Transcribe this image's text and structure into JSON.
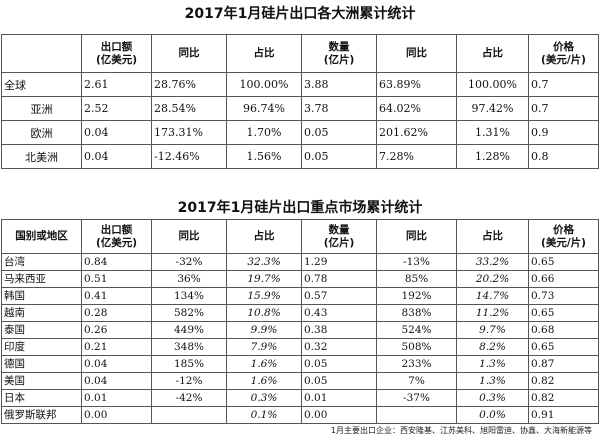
{
  "continent_table": {
    "title": "2017年1月硅片出口各大洲累计统计",
    "headers": [
      {
        "line1": "",
        "line2": ""
      },
      {
        "line1": "出口额",
        "line2": "(亿美元)"
      },
      {
        "line1": "同比",
        "line2": ""
      },
      {
        "line1": "占比",
        "line2": ""
      },
      {
        "line1": "数量",
        "line2": "(亿片)"
      },
      {
        "line1": "同比",
        "line2": ""
      },
      {
        "line1": "占比",
        "line2": ""
      },
      {
        "line1": "价格",
        "line2": "(美元/片)"
      }
    ],
    "rows": [
      [
        "全球",
        "2.61",
        "28.76%",
        "100.00%",
        "3.88",
        "63.89%",
        "100.00%",
        "0.7"
      ],
      [
        "亚洲",
        "2.52",
        "28.54%",
        "96.74%",
        "3.78",
        "64.02%",
        "97.42%",
        "0.7"
      ],
      [
        "欧洲",
        "0.04",
        "173.31%",
        "1.70%",
        "0.05",
        "201.62%",
        "1.31%",
        "0.9"
      ],
      [
        "北美洲",
        "0.04",
        "-12.46%",
        "1.56%",
        "0.05",
        "7.28%",
        "1.28%",
        "0.8"
      ]
    ]
  },
  "market_table": {
    "title": "2017年1月硅片出口重点市场累计统计",
    "headers": [
      {
        "line1": "国别或地区",
        "line2": ""
      },
      {
        "line1": "出口额",
        "line2": "(亿美元)"
      },
      {
        "line1": "同比",
        "line2": ""
      },
      {
        "line1": "占比",
        "line2": ""
      },
      {
        "line1": "数量",
        "line2": "(亿片)"
      },
      {
        "line1": "同比",
        "line2": ""
      },
      {
        "line1": "占比",
        "line2": ""
      },
      {
        "line1": "价格",
        "line2": "(美元/片)"
      }
    ],
    "rows": [
      [
        "台湾",
        "0.84",
        "-32%",
        "32.3%",
        "1.29",
        "-13%",
        "33.2%",
        "0.65"
      ],
      [
        "马来西亚",
        "0.51",
        "36%",
        "19.7%",
        "0.78",
        "85%",
        "20.2%",
        "0.66"
      ],
      [
        "韩国",
        "0.41",
        "134%",
        "15.9%",
        "0.57",
        "192%",
        "14.7%",
        "0.73"
      ],
      [
        "越南",
        "0.28",
        "582%",
        "10.8%",
        "0.43",
        "838%",
        "11.2%",
        "0.65"
      ],
      [
        "泰国",
        "0.26",
        "449%",
        "9.9%",
        "0.38",
        "524%",
        "9.7%",
        "0.68"
      ],
      [
        "印度",
        "0.21",
        "348%",
        "7.9%",
        "0.32",
        "508%",
        "8.2%",
        "0.65"
      ],
      [
        "德国",
        "0.04",
        "185%",
        "1.6%",
        "0.05",
        "233%",
        "1.3%",
        "0.87"
      ],
      [
        "美国",
        "0.04",
        "-12%",
        "1.6%",
        "0.05",
        "7%",
        "1.3%",
        "0.82"
      ],
      [
        "日本",
        "0.01",
        "-42%",
        "0.3%",
        "0.01",
        "-37%",
        "0.3%",
        "0.82"
      ],
      [
        "俄罗斯联邦",
        "0.00",
        "",
        "0.1%",
        "0.00",
        "",
        "0.0%",
        "0.91"
      ]
    ]
  },
  "footnote": "1月主要出口企业：西安隆基、江苏美科、旭阳雷迪、协鑫、大海新能源等"
}
